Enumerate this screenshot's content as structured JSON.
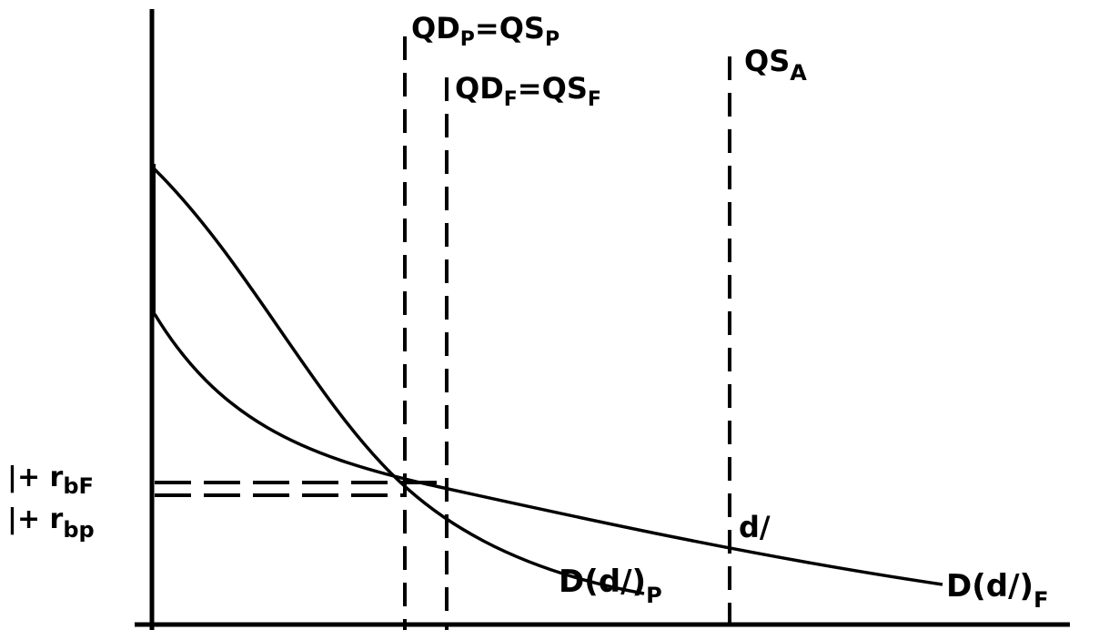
{
  "diagram": {
    "labels": {
      "qdp_eq_qsp_main": "QD",
      "qdp_eq_qsp_sub1": "P",
      "qdp_eq_qsp_mid": "=QS",
      "qdp_eq_qsp_sub2": "P",
      "qdf_eq_qsf_main": "QD",
      "qdf_eq_qsf_sub1": "F",
      "qdf_eq_qsf_mid": "=QS",
      "qdf_eq_qsf_sub2": "F",
      "qsa_main": "QS",
      "qsa_sub": "A",
      "one_plus_rbf_main": "|+ r",
      "one_plus_rbf_sub": "bF",
      "one_plus_rbp_main": "|+ r",
      "one_plus_rbp_sub": "bp",
      "d_slash": "d/",
      "demand_p_main": "D(d/)",
      "demand_p_sub": "P",
      "demand_f_main": "D(d/)",
      "demand_f_sub": "F"
    },
    "colors": {
      "ink": "#000000",
      "background": "#ffffff"
    }
  }
}
